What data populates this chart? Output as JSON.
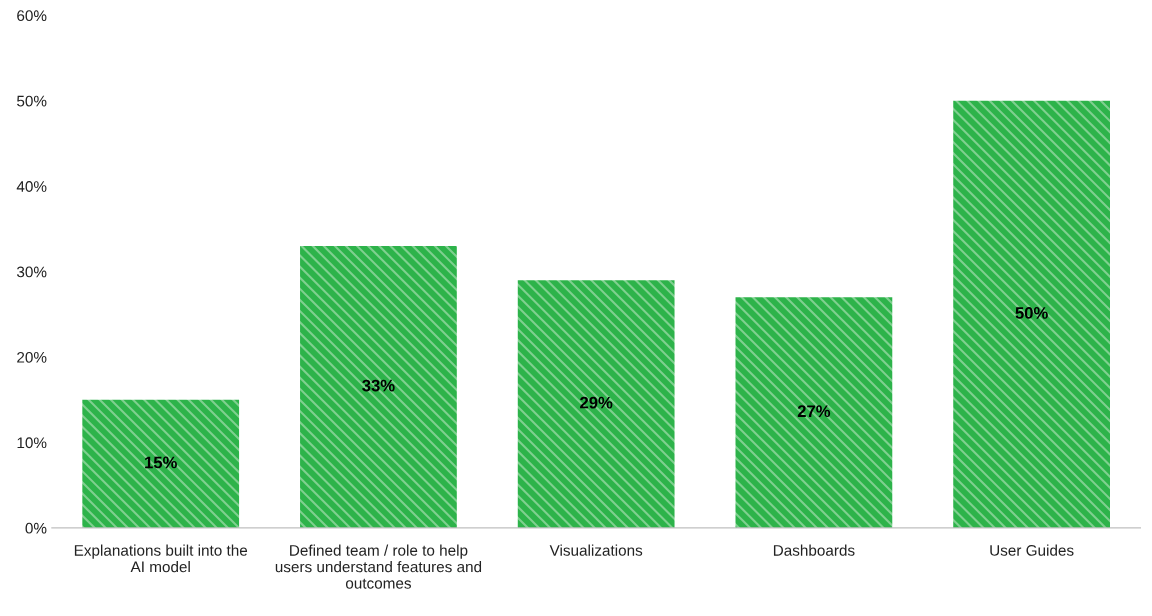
{
  "chart_data": {
    "type": "bar",
    "categories": [
      "Explanations built into the\nAI model",
      "Defined team / role to help\nusers understand features and\noutcomes",
      "Visualizations",
      "Dashboards",
      "User Guides"
    ],
    "values": [
      15,
      33,
      29,
      27,
      50
    ],
    "value_labels": [
      "15%",
      "33%",
      "29%",
      "27%",
      "50%"
    ],
    "color": "#2db34a",
    "ylim": [
      0,
      60
    ],
    "yticks": [
      {
        "value": 0,
        "label": "0%"
      },
      {
        "value": 10,
        "label": "10%"
      },
      {
        "value": 20,
        "label": "20%"
      },
      {
        "value": 30,
        "label": "30%"
      },
      {
        "value": 40,
        "label": "40%"
      },
      {
        "value": 50,
        "label": "50%"
      },
      {
        "value": 60,
        "label": "60%"
      }
    ],
    "grid": false
  }
}
